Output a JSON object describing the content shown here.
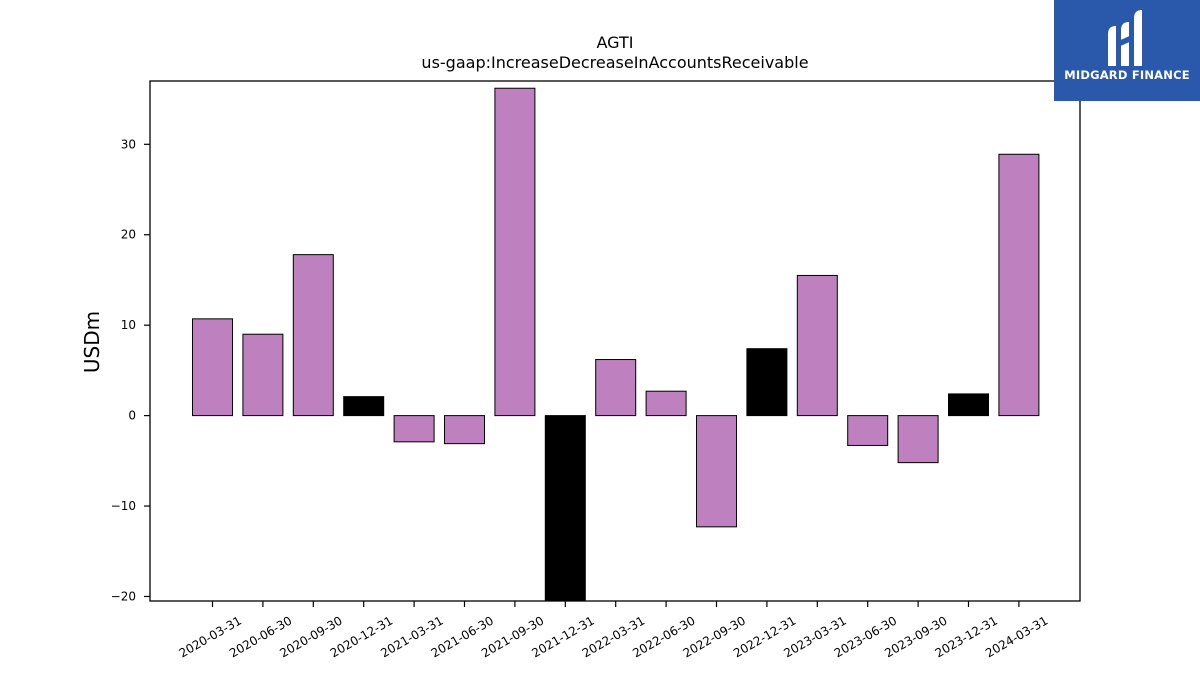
{
  "chart_data": {
    "type": "bar",
    "title": "AGTI",
    "subtitle": "us-gaap:IncreaseDecreaseInAccountsReceivable",
    "ylabel": "USDm",
    "xlabel": "",
    "ylim": [
      -20.5,
      37
    ],
    "yticks": [
      -20,
      -10,
      0,
      10,
      20,
      30
    ],
    "categories": [
      "2020-03-31",
      "2020-06-30",
      "2020-09-30",
      "2020-12-31",
      "2021-03-31",
      "2021-06-30",
      "2021-09-30",
      "2021-12-31",
      "2022-03-31",
      "2022-06-30",
      "2022-09-30",
      "2022-12-31",
      "2023-03-31",
      "2023-06-30",
      "2023-09-30",
      "2023-12-31",
      "2024-03-31"
    ],
    "values": [
      10.7,
      9.0,
      17.8,
      2.1,
      -2.9,
      -3.1,
      36.2,
      -20.5,
      6.2,
      2.7,
      -12.3,
      7.4,
      15.5,
      -3.3,
      -5.2,
      2.4,
      28.9
    ],
    "bar_colors": [
      "#bf80bf",
      "#bf80bf",
      "#bf80bf",
      "#000000",
      "#bf80bf",
      "#bf80bf",
      "#bf80bf",
      "#000000",
      "#bf80bf",
      "#bf80bf",
      "#bf80bf",
      "#000000",
      "#bf80bf",
      "#bf80bf",
      "#bf80bf",
      "#000000",
      "#bf80bf"
    ],
    "grid": false,
    "legend": "none"
  },
  "logo": {
    "text": "MIDGARD FINANCE",
    "background": "#2a59ac"
  }
}
